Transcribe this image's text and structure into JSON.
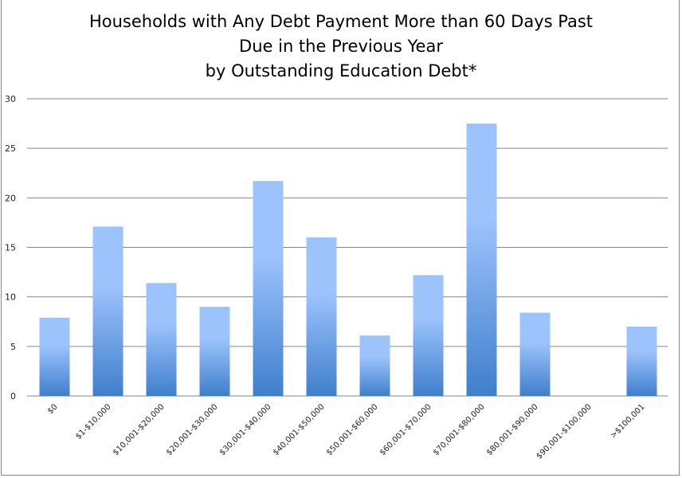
{
  "chart_data": {
    "type": "bar",
    "title_lines": [
      "Households with Any Debt Payment More than 60 Days Past",
      "Due in the Previous Year",
      "by Outstanding Education Debt*"
    ],
    "xlabel": "",
    "ylabel": "",
    "categories": [
      "$0",
      "$1-$10,000",
      "$10,001-$20,000",
      "$20,001-$30,000",
      "$30,001-$40,000",
      "$40,001-$50,000",
      "$50,001-$60,000",
      "$60,001-$70,000",
      "$70,001-$80,000",
      "$80,001-$90,000",
      "$90,001-$100,000",
      ">$100,001"
    ],
    "values": [
      7.9,
      17.1,
      11.4,
      9.0,
      21.7,
      16.0,
      6.1,
      12.2,
      27.5,
      8.4,
      0,
      7.0
    ],
    "ylim": [
      0,
      30
    ],
    "yticks": [
      0,
      5,
      10,
      15,
      20,
      25,
      30
    ],
    "grid": true,
    "legend": "none",
    "colors": {
      "bar_top": "#9dc3fd",
      "bar_bottom": "#3f7fcc",
      "grid": "#868686"
    }
  }
}
